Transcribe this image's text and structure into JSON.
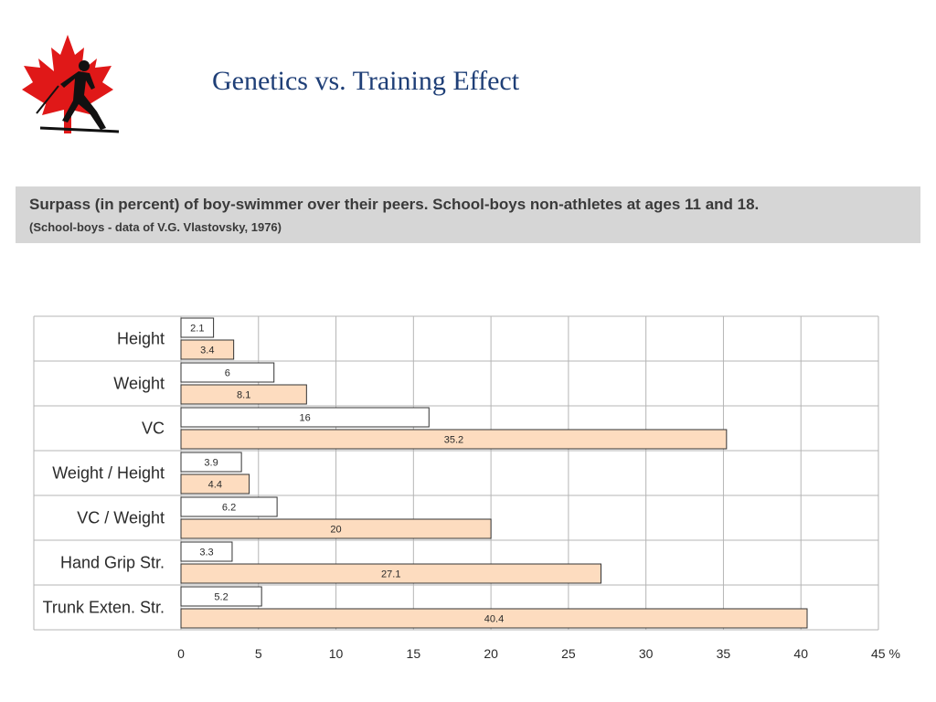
{
  "slide": {
    "title": "Genetics vs. Training Effect"
  },
  "caption": {
    "main": "Surpass (in percent) of boy-swimmer over their peers. School-boys non-athletes at ages 11 and 18.",
    "sub": "(School-boys - data of V.G. Vlastovsky, 1976)"
  },
  "colors": {
    "title": "#1f3f77",
    "caption_bg": "#d6d6d6",
    "series_age11_fill": "#ffffff",
    "series_age18_fill": "#fddcbf",
    "bar_stroke": "#333333",
    "grid": "#b5b5b5",
    "logo_leaf": "#e01818"
  },
  "logo": {
    "icon": "maple-leaf-skier-logo"
  },
  "chart_data": {
    "type": "bar",
    "orientation": "horizontal",
    "categories": [
      "Height",
      "Weight",
      "VC",
      "Weight / Height",
      "VC / Weight",
      "Hand Grip Str.",
      "Trunk Exten. Str."
    ],
    "series": [
      {
        "values": [
          2.1,
          6,
          16,
          3.9,
          6.2,
          3.3,
          5.2
        ]
      },
      {
        "values": [
          3.4,
          8.1,
          35.2,
          4.4,
          20,
          27.1,
          40.4
        ]
      }
    ],
    "x_ticks": [
      "0",
      "5",
      "10",
      "15",
      "20",
      "25",
      "30",
      "35",
      "40",
      "45 %"
    ],
    "xlim": [
      0,
      45
    ],
    "grid": true,
    "data_labels": true
  }
}
